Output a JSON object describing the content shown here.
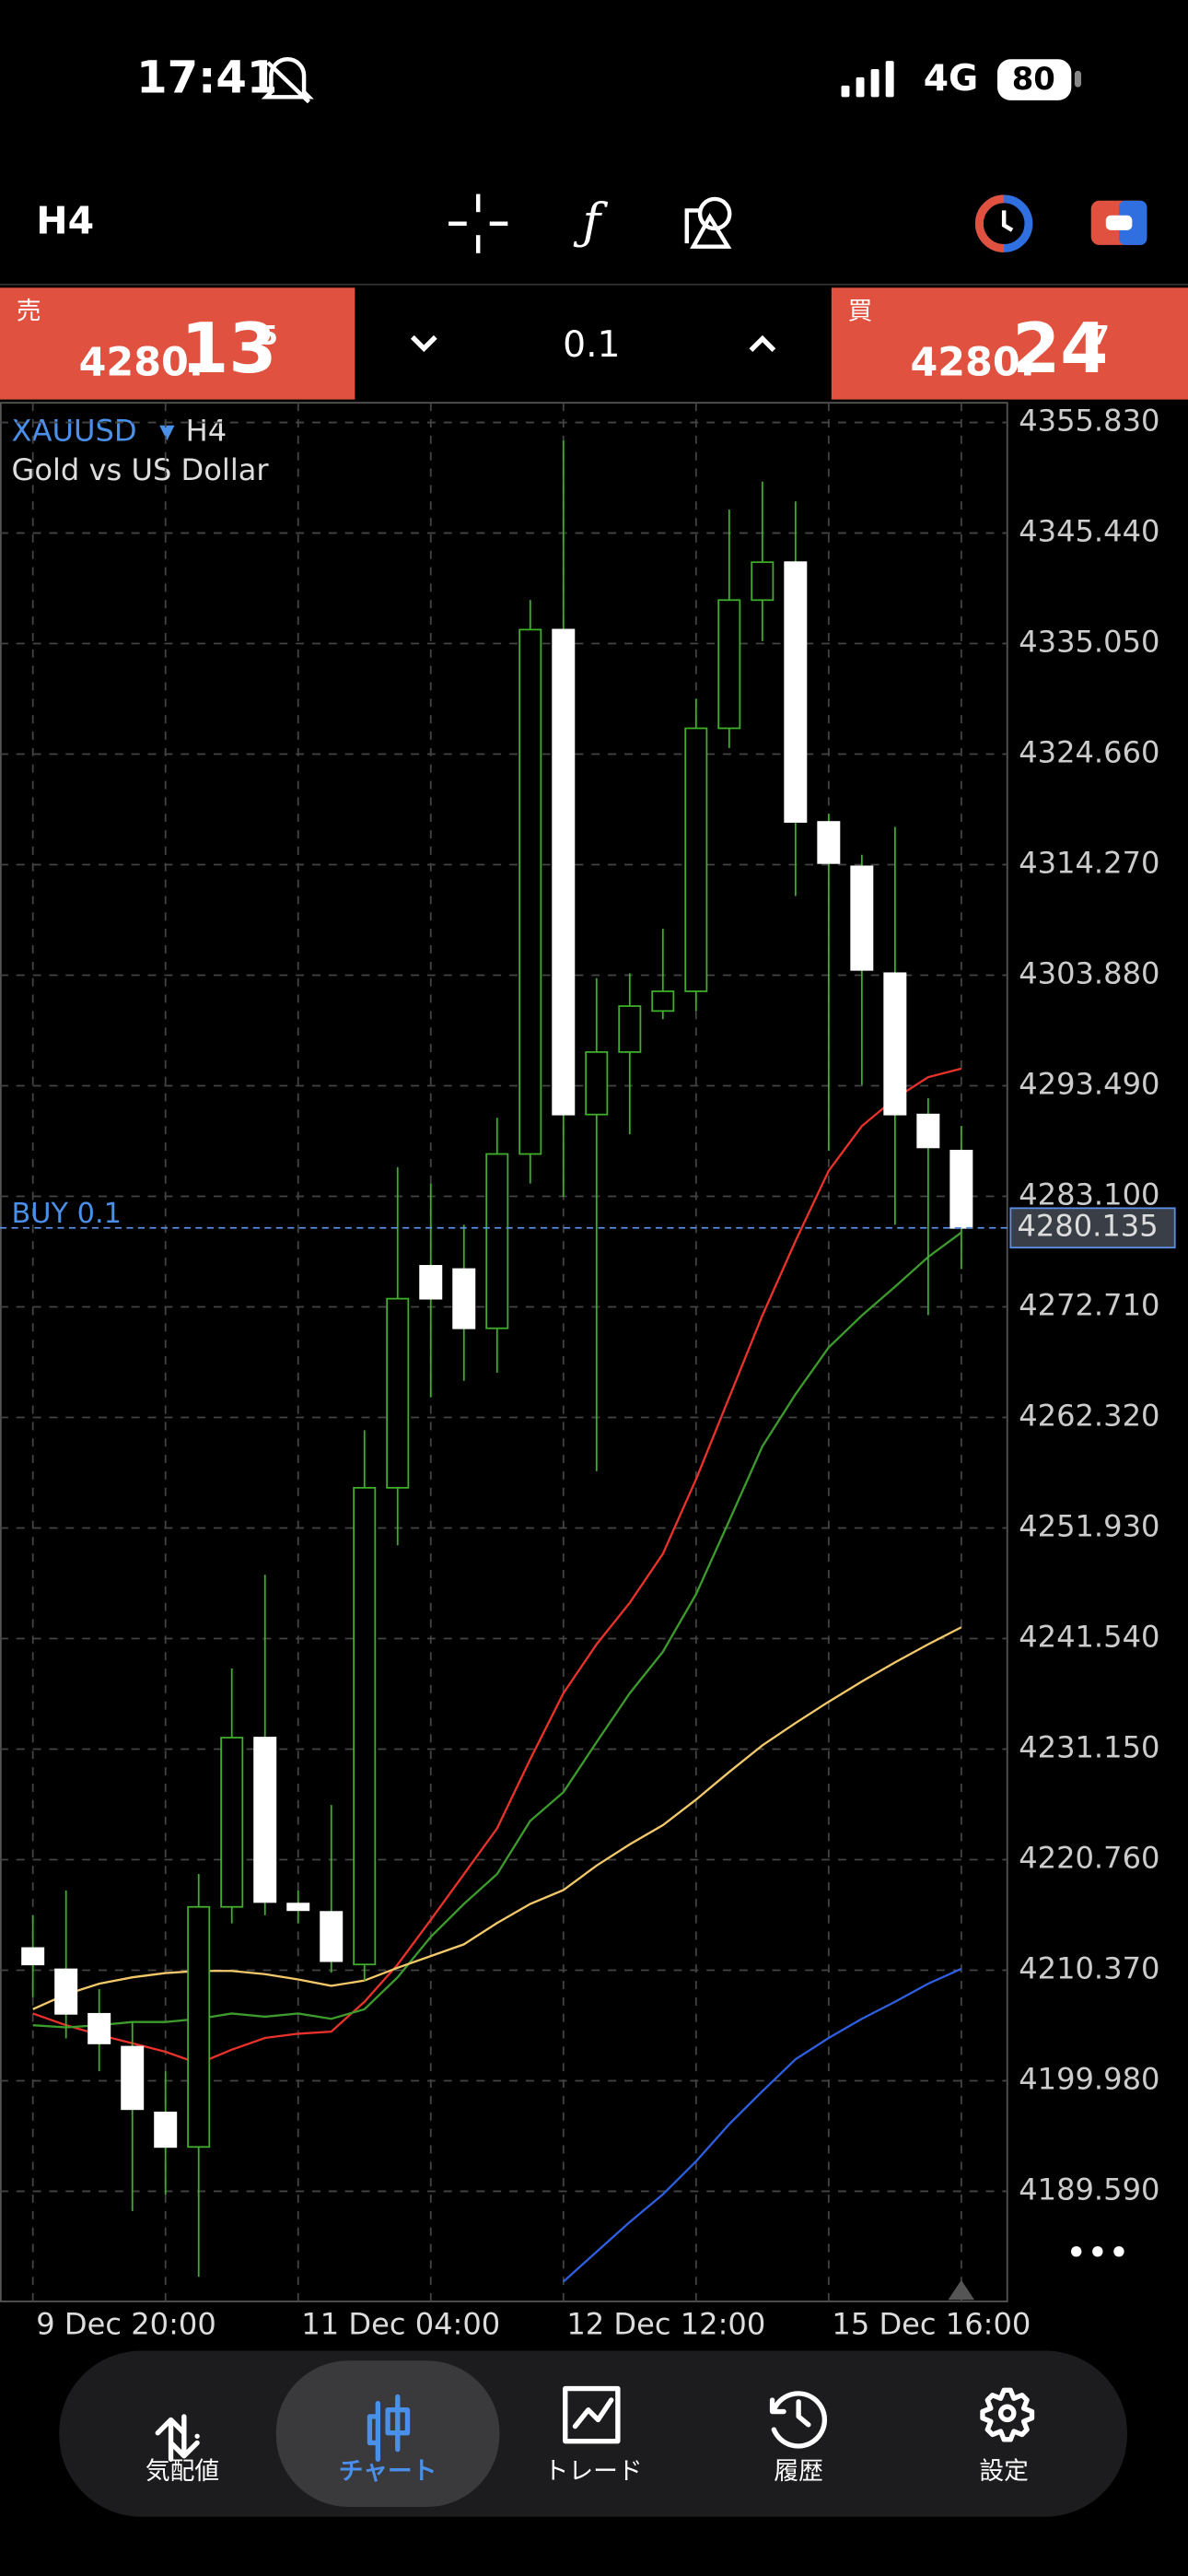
{
  "status_bar": {
    "time": "17:41",
    "network": "4G",
    "battery": "80"
  },
  "toolbar": {
    "timeframe": "H4"
  },
  "trade_panel": {
    "sell": {
      "label": "売",
      "price_main": "4280.",
      "price_big": "13",
      "price_sup": "5"
    },
    "volume": "0.1",
    "buy": {
      "label": "買",
      "price_main": "4280.",
      "price_big": "24",
      "price_sup": "7"
    }
  },
  "chart_data": {
    "type": "candlestick",
    "symbol": "XAUUSD",
    "timeframe": "H4",
    "description": "Gold vs US Dollar",
    "categories": [
      "9 Dec 20:00",
      null,
      null,
      null,
      null,
      null,
      null,
      null,
      "11 Dec 04:00",
      null,
      null,
      null,
      null,
      null,
      null,
      null,
      "12 Dec 12:00",
      null,
      null,
      null,
      null,
      null,
      null,
      null,
      "15 Dec 16:00",
      null,
      null,
      null,
      null
    ],
    "open": [
      4212.45,
      4210.45,
      4206.27,
      4203.18,
      4197.0,
      4193.76,
      4216.32,
      4232.23,
      4216.63,
      4215.85,
      4210.91,
      4255.71,
      4276.57,
      4276.26,
      4270.7,
      4287.08,
      4336.36,
      4290.79,
      4296.66,
      4300.52,
      4302.37,
      4327.09,
      4339.14,
      4342.7,
      4318.29,
      4314.11,
      4304.07,
      4290.79,
      4287.39
    ],
    "high": [
      4215.54,
      4217.86,
      4208.59,
      4205.5,
      4200.87,
      4219.41,
      4238.72,
      4247.53,
      4217.86,
      4225.9,
      4261.12,
      4285.84,
      4284.3,
      4280.43,
      4290.48,
      4339.14,
      4354.13,
      4303.61,
      4304.07,
      4308.24,
      4329.87,
      4347.64,
      4350.27,
      4348.41,
      4319.06,
      4315.2,
      4317.82,
      4292.33,
      4289.7
    ],
    "low": [
      4207.82,
      4203.96,
      4200.87,
      4187.73,
      4189.28,
      4181.55,
      4214.77,
      4215.54,
      4214.77,
      4210.14,
      4209.36,
      4250.31,
      4264.21,
      4265.76,
      4266.53,
      4284.3,
      4283.06,
      4257.26,
      4288.93,
      4299.75,
      4300.52,
      4325.24,
      4335.28,
      4311.33,
      4287.39,
      4293.57,
      4280.43,
      4271.94,
      4276.26
    ],
    "close": [
      4210.91,
      4206.27,
      4203.49,
      4197.31,
      4193.76,
      4216.32,
      4232.23,
      4216.78,
      4216.01,
      4211.22,
      4255.71,
      4273.48,
      4273.48,
      4270.7,
      4287.08,
      4336.36,
      4290.79,
      4296.66,
      4300.98,
      4302.37,
      4327.09,
      4339.14,
      4342.7,
      4318.29,
      4314.42,
      4304.38,
      4290.79,
      4287.7,
      4280.135
    ],
    "bull_color": "#3fae2a",
    "bear_color": "#ffffff",
    "series": [
      {
        "color": "#e8322b",
        "values": [
          4206.3,
          4205.2,
          4204.3,
          4203.5,
          4202.7,
          4201.6,
          4202.9,
          4204.0,
          4204.4,
          4204.6,
          4207.4,
          4210.9,
          4215.1,
          4219.4,
          4223.7,
          4230.2,
          4236.4,
          4241.0,
          4244.9,
          4249.5,
          4256.5,
          4264.2,
          4271.9,
          4278.9,
          4285.5,
          4289.7,
          4292.3,
          4294.3,
          4295.1
        ]
      },
      {
        "color": "#3d9a2c",
        "values": [
          4205.2,
          4205.0,
          4205.2,
          4205.5,
          4205.5,
          4205.8,
          4206.3,
          4206.0,
          4206.3,
          4205.8,
          4206.7,
          4209.7,
          4213.5,
          4216.6,
          4219.4,
          4224.4,
          4227.1,
          4231.8,
          4236.4,
          4240.3,
          4245.7,
          4252.6,
          4259.6,
          4264.5,
          4268.9,
          4271.9,
          4274.6,
          4277.4,
          4279.7
        ]
      },
      {
        "color": "#f3c86a",
        "values": [
          4206.7,
          4208.1,
          4209.1,
          4209.7,
          4210.1,
          4210.3,
          4210.3,
          4210.0,
          4209.5,
          4208.9,
          4209.4,
          4210.6,
          4211.7,
          4212.8,
          4214.8,
          4216.6,
          4217.9,
          4220.2,
          4222.2,
          4224.0,
          4226.4,
          4229.0,
          4231.5,
          4233.6,
          4235.6,
          4237.5,
          4239.3,
          4241.0,
          4242.6
        ]
      },
      {
        "color": "#2f5fe0",
        "values": [
          null,
          null,
          null,
          null,
          null,
          null,
          null,
          null,
          null,
          null,
          null,
          null,
          null,
          null,
          null,
          null,
          4181.1,
          4183.9,
          4186.7,
          4189.3,
          4192.4,
          4195.9,
          4199.0,
          4202.0,
          4204.0,
          4205.8,
          4207.4,
          4209.1,
          4210.5
        ]
      }
    ],
    "ylim": [
      4179.24,
      4357.68
    ],
    "yticks": [
      {
        "value": 4355.83,
        "label": "4355.830"
      },
      {
        "value": 4345.44,
        "label": "4345.440"
      },
      {
        "value": 4335.05,
        "label": "4335.050"
      },
      {
        "value": 4324.66,
        "label": "4324.660"
      },
      {
        "value": 4314.27,
        "label": "4314.270"
      },
      {
        "value": 4303.88,
        "label": "4303.880"
      },
      {
        "value": 4293.49,
        "label": "4293.490"
      },
      {
        "value": 4283.1,
        "label": "4283.100"
      },
      {
        "value": 4272.71,
        "label": "4272.710"
      },
      {
        "value": 4262.32,
        "label": "4262.320"
      },
      {
        "value": 4251.93,
        "label": "4251.930"
      },
      {
        "value": 4241.54,
        "label": "4241.540"
      },
      {
        "value": 4231.15,
        "label": "4231.150"
      },
      {
        "value": 4220.76,
        "label": "4220.760"
      },
      {
        "value": 4210.37,
        "label": "4210.370"
      },
      {
        "value": 4199.98,
        "label": "4199.980"
      },
      {
        "value": 4189.59,
        "label": "4189.590"
      }
    ],
    "grid": true,
    "bid": 4280.135,
    "order": {
      "label": "BUY 0.1",
      "price": 4280.135
    }
  },
  "nav": {
    "items": [
      {
        "label": "気配値"
      },
      {
        "label": "チャート"
      },
      {
        "label": "トレード"
      },
      {
        "label": "履歴"
      },
      {
        "label": "設定"
      }
    ],
    "active": 1
  }
}
